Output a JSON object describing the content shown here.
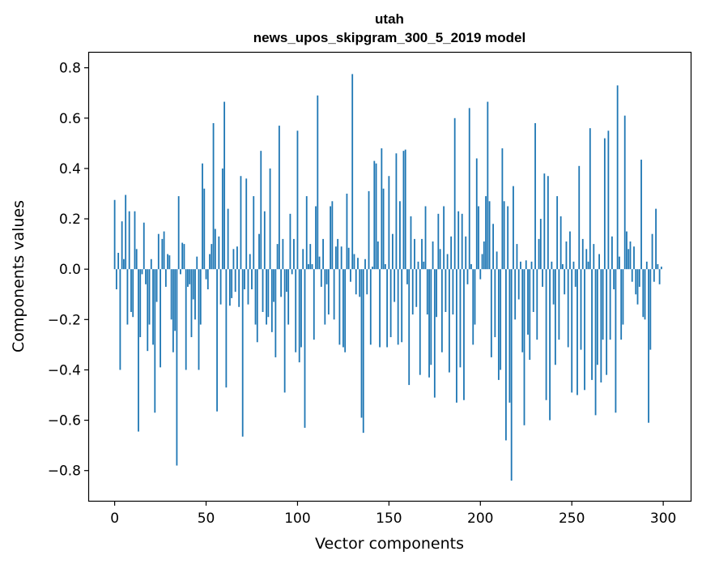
{
  "chart_data": {
    "type": "bar",
    "title": "utah",
    "subtitle": "news_upos_skipgram_300_5_2019 model",
    "xlabel": "Vector components",
    "ylabel": "Components values",
    "xlim": [
      -14,
      315
    ],
    "ylim": [
      -0.92,
      0.86
    ],
    "x_ticks": [
      0,
      50,
      100,
      150,
      200,
      250,
      300
    ],
    "y_ticks": [
      -0.8,
      -0.6,
      -0.4,
      -0.2,
      0.0,
      0.2,
      0.4,
      0.6,
      0.8
    ],
    "y_tick_labels": [
      "−0.8",
      "−0.6",
      "−0.4",
      "−0.2",
      "0.0",
      "0.2",
      "0.4",
      "0.6",
      "0.8"
    ],
    "x_tick_labels": [
      "0",
      "50",
      "100",
      "150",
      "200",
      "250",
      "300"
    ],
    "bar_color": "#1f77b4",
    "grid": false,
    "values": [
      0.275,
      -0.08,
      0.065,
      -0.4,
      0.19,
      0.04,
      0.295,
      -0.22,
      0.23,
      -0.17,
      -0.19,
      0.23,
      0.08,
      -0.645,
      -0.27,
      -0.02,
      0.185,
      -0.06,
      -0.325,
      -0.22,
      0.04,
      -0.3,
      -0.57,
      -0.13,
      0.14,
      -0.39,
      0.12,
      0.15,
      -0.07,
      0.06,
      0.055,
      -0.2,
      -0.33,
      -0.245,
      -0.78,
      0.29,
      -0.02,
      0.105,
      0.1,
      -0.4,
      -0.07,
      -0.06,
      -0.27,
      -0.12,
      -0.2,
      0.05,
      -0.4,
      -0.22,
      0.42,
      0.32,
      -0.04,
      -0.08,
      0.06,
      0.1,
      0.58,
      0.16,
      -0.565,
      0.13,
      -0.14,
      0.4,
      0.665,
      -0.47,
      0.24,
      -0.145,
      -0.115,
      0.08,
      -0.09,
      0.09,
      -0.15,
      0.37,
      -0.665,
      -0.08,
      0.36,
      -0.14,
      0.06,
      -0.08,
      0.29,
      -0.22,
      -0.29,
      0.14,
      0.47,
      -0.17,
      0.23,
      -0.22,
      -0.19,
      0.4,
      -0.25,
      -0.13,
      -0.35,
      0.1,
      0.57,
      -0.11,
      0.12,
      -0.49,
      -0.09,
      -0.22,
      0.22,
      -0.02,
      0.12,
      -0.33,
      0.55,
      -0.37,
      -0.31,
      0.08,
      -0.63,
      0.29,
      0.02,
      0.1,
      0.02,
      -0.28,
      0.25,
      0.69,
      0.05,
      -0.07,
      0.12,
      -0.22,
      -0.06,
      -0.18,
      0.25,
      0.27,
      -0.2,
      0.09,
      0.12,
      -0.3,
      0.09,
      -0.31,
      -0.33,
      0.3,
      0.085,
      -0.05,
      0.775,
      0.06,
      -0.1,
      0.045,
      -0.11,
      -0.59,
      -0.65,
      0.04,
      -0.1,
      0.31,
      -0.3,
      0.01,
      0.43,
      0.42,
      0.11,
      -0.31,
      0.48,
      0.32,
      0.02,
      -0.31,
      0.37,
      -0.27,
      0.14,
      -0.13,
      0.46,
      -0.3,
      0.27,
      -0.29,
      0.47,
      0.475,
      -0.06,
      -0.46,
      0.21,
      -0.18,
      0.12,
      -0.15,
      0.03,
      -0.42,
      0.12,
      0.03,
      0.25,
      -0.18,
      -0.43,
      -0.38,
      0.11,
      -0.51,
      -0.19,
      0.22,
      0.08,
      -0.33,
      0.25,
      -0.17,
      0.06,
      -0.41,
      0.13,
      -0.18,
      0.6,
      -0.53,
      0.23,
      -0.39,
      0.22,
      -0.52,
      0.13,
      -0.06,
      0.64,
      0.02,
      -0.3,
      -0.22,
      0.44,
      0.25,
      -0.04,
      0.06,
      0.11,
      0.29,
      0.665,
      0.27,
      -0.35,
      0.18,
      -0.27,
      0.07,
      -0.44,
      -0.4,
      0.48,
      0.27,
      -0.68,
      0.25,
      -0.53,
      -0.84,
      0.33,
      -0.2,
      0.1,
      -0.12,
      0.03,
      -0.33,
      -0.62,
      0.035,
      -0.26,
      -0.36,
      0.03,
      -0.17,
      0.58,
      -0.28,
      0.12,
      0.2,
      -0.07,
      0.38,
      -0.52,
      0.37,
      -0.6,
      0.03,
      -0.14,
      -0.38,
      0.29,
      -0.28,
      0.21,
      0.02,
      -0.1,
      0.11,
      -0.31,
      0.15,
      -0.49,
      0.03,
      -0.07,
      -0.5,
      0.41,
      -0.32,
      0.12,
      -0.48,
      0.08,
      0.03,
      0.56,
      -0.44,
      0.1,
      -0.58,
      -0.38,
      0.06,
      -0.45,
      -0.28,
      0.52,
      -0.42,
      0.55,
      -0.28,
      0.13,
      -0.08,
      -0.57,
      0.73,
      0.05,
      -0.28,
      -0.22,
      0.61,
      0.15,
      0.08,
      0.11,
      -0.05,
      0.09,
      -0.1,
      -0.14,
      -0.07,
      0.435,
      -0.19,
      -0.2,
      0.03,
      -0.61,
      -0.32,
      0.14,
      -0.05,
      0.24,
      0.02,
      -0.06,
      0.01
    ]
  }
}
